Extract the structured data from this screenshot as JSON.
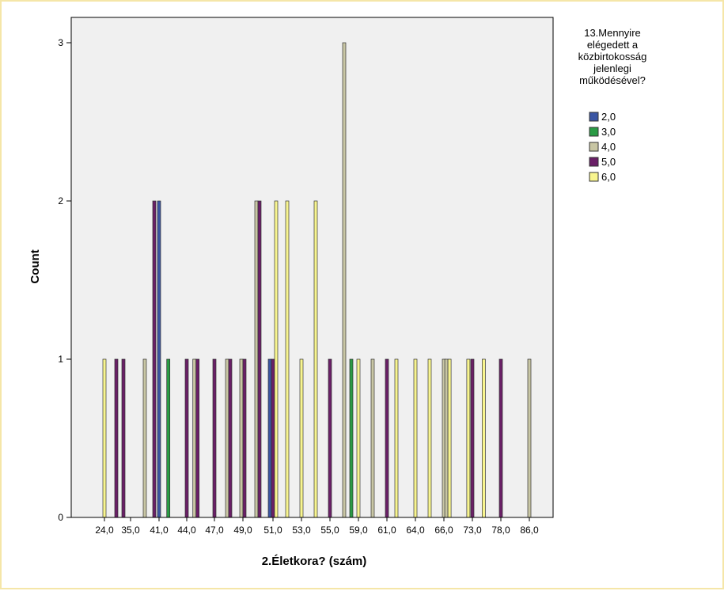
{
  "chart_data": {
    "type": "bar",
    "xlabel": "2.Életkora? (szám)",
    "ylabel": "Count",
    "ylim": [
      0,
      3
    ],
    "y_ticks": [
      "0",
      "1",
      "2",
      "3"
    ],
    "x_tick_labels": [
      "24,0",
      "35,0",
      "41,0",
      "44,0",
      "47,0",
      "49,0",
      "51,0",
      "53,0",
      "55,0",
      "59,0",
      "61,0",
      "64,0",
      "66,0",
      "73,0",
      "78,0",
      "86,0"
    ],
    "legend": {
      "title": "13.Mennyire elégedett a közbirtokosság jelenlegi működésével?",
      "placement": "right",
      "items": [
        {
          "label": "2,0",
          "color": "#3a55a3"
        },
        {
          "label": "3,0",
          "color": "#2a9b45"
        },
        {
          "label": "4,0",
          "color": "#c8c6a4"
        },
        {
          "label": "5,0",
          "color": "#6a1f67"
        },
        {
          "label": "6,0",
          "color": "#f8f58f"
        }
      ]
    },
    "grid": false,
    "background": "#f0f0f0",
    "bars": [
      {
        "age": 24,
        "category": "6,0",
        "count": 1
      },
      {
        "age": 29,
        "category": "5,0",
        "count": 1
      },
      {
        "age": 32,
        "category": "5,0",
        "count": 1
      },
      {
        "age": 38,
        "category": "4,0",
        "count": 1
      },
      {
        "age": 40,
        "category": "5,0",
        "count": 2
      },
      {
        "age": 41,
        "category": "2,0",
        "count": 2
      },
      {
        "age": 42,
        "category": "3,0",
        "count": 1
      },
      {
        "age": 44,
        "category": "5,0",
        "count": 1
      },
      {
        "age": 45,
        "category": "4,0",
        "count": 1
      },
      {
        "age": 45,
        "category": "5,0",
        "count": 1
      },
      {
        "age": 47,
        "category": "5,0",
        "count": 1
      },
      {
        "age": 48,
        "category": "4,0",
        "count": 1
      },
      {
        "age": 48,
        "category": "5,0",
        "count": 1
      },
      {
        "age": 49,
        "category": "4,0",
        "count": 1
      },
      {
        "age": 49,
        "category": "5,0",
        "count": 1
      },
      {
        "age": 50,
        "category": "5,0",
        "count": 2
      },
      {
        "age": 50,
        "category": "4,0",
        "count": 2
      },
      {
        "age": 51,
        "category": "5,0",
        "count": 1
      },
      {
        "age": 51,
        "category": "6,0",
        "count": 2
      },
      {
        "age": 51,
        "category": "2,0",
        "count": 1
      },
      {
        "age": 52,
        "category": "6,0",
        "count": 2
      },
      {
        "age": 53,
        "category": "6,0",
        "count": 1
      },
      {
        "age": 54,
        "category": "6,0",
        "count": 2
      },
      {
        "age": 55,
        "category": "5,0",
        "count": 1
      },
      {
        "age": 57,
        "category": "4,0",
        "count": 3
      },
      {
        "age": 58,
        "category": "3,0",
        "count": 1
      },
      {
        "age": 59,
        "category": "6,0",
        "count": 1
      },
      {
        "age": 60,
        "category": "4,0",
        "count": 1
      },
      {
        "age": 61,
        "category": "5,0",
        "count": 1
      },
      {
        "age": 62,
        "category": "6,0",
        "count": 1
      },
      {
        "age": 64,
        "category": "6,0",
        "count": 1
      },
      {
        "age": 65,
        "category": "6,0",
        "count": 1
      },
      {
        "age": 66,
        "category": "4,0",
        "count": 1
      },
      {
        "age": 67,
        "category": "4,0",
        "count": 1
      },
      {
        "age": 67,
        "category": "6,0",
        "count": 1
      },
      {
        "age": 72,
        "category": "6,0",
        "count": 1
      },
      {
        "age": 73,
        "category": "5,0",
        "count": 1
      },
      {
        "age": 75,
        "category": "6,0",
        "count": 1
      },
      {
        "age": 78,
        "category": "5,0",
        "count": 1
      },
      {
        "age": 86,
        "category": "4,0",
        "count": 1
      }
    ]
  }
}
